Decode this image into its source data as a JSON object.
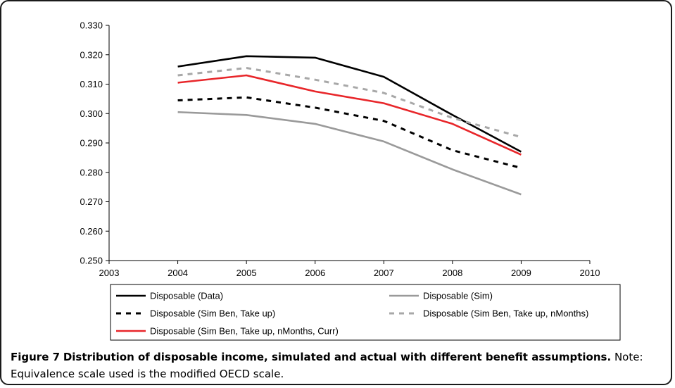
{
  "caption": {
    "label": "Figure 7",
    "title": "Distribution of disposable income, simulated and actual with different benefit assumptions.",
    "note": "Note: Equivalence scale used is the modified OECD scale."
  },
  "chart_data": {
    "type": "line",
    "title": "",
    "xlabel": "",
    "ylabel": "",
    "x_ticks": [
      2003,
      2004,
      2005,
      2006,
      2007,
      2008,
      2009,
      2010
    ],
    "y_ticks": [
      "0.250",
      "0.260",
      "0.270",
      "0.280",
      "0.290",
      "0.300",
      "0.310",
      "0.320",
      "0.330"
    ],
    "xlim": [
      2003,
      2010
    ],
    "ylim": [
      0.25,
      0.33
    ],
    "grid": false,
    "legend_position": "bottom",
    "x": [
      2004,
      2005,
      2006,
      2007,
      2008,
      2009
    ],
    "series": [
      {
        "name": "Disposable (Data)",
        "color": "#000000",
        "dash": "solid",
        "values": [
          0.316,
          0.3195,
          0.319,
          0.3125,
          0.2995,
          0.287
        ]
      },
      {
        "name": "Disposable (Sim)",
        "color": "#9a9a9a",
        "dash": "solid",
        "values": [
          0.3005,
          0.2995,
          0.2965,
          0.2905,
          0.281,
          0.2725
        ]
      },
      {
        "name": "Disposable (Sim Ben, Take up)",
        "color": "#000000",
        "dash": "dashed",
        "values": [
          0.3045,
          0.3055,
          0.302,
          0.2975,
          0.2875,
          0.2815
        ]
      },
      {
        "name": "Disposable (Sim Ben, Take up, nMonths)",
        "color": "#a8a8a8",
        "dash": "dashed",
        "values": [
          0.313,
          0.3155,
          0.3115,
          0.307,
          0.2985,
          0.292
        ]
      },
      {
        "name": "Disposable (Sim Ben, Take up, nMonths, Curr)",
        "color": "#e8262a",
        "dash": "solid",
        "values": [
          0.3105,
          0.313,
          0.3075,
          0.3035,
          0.2965,
          0.286
        ]
      }
    ]
  }
}
